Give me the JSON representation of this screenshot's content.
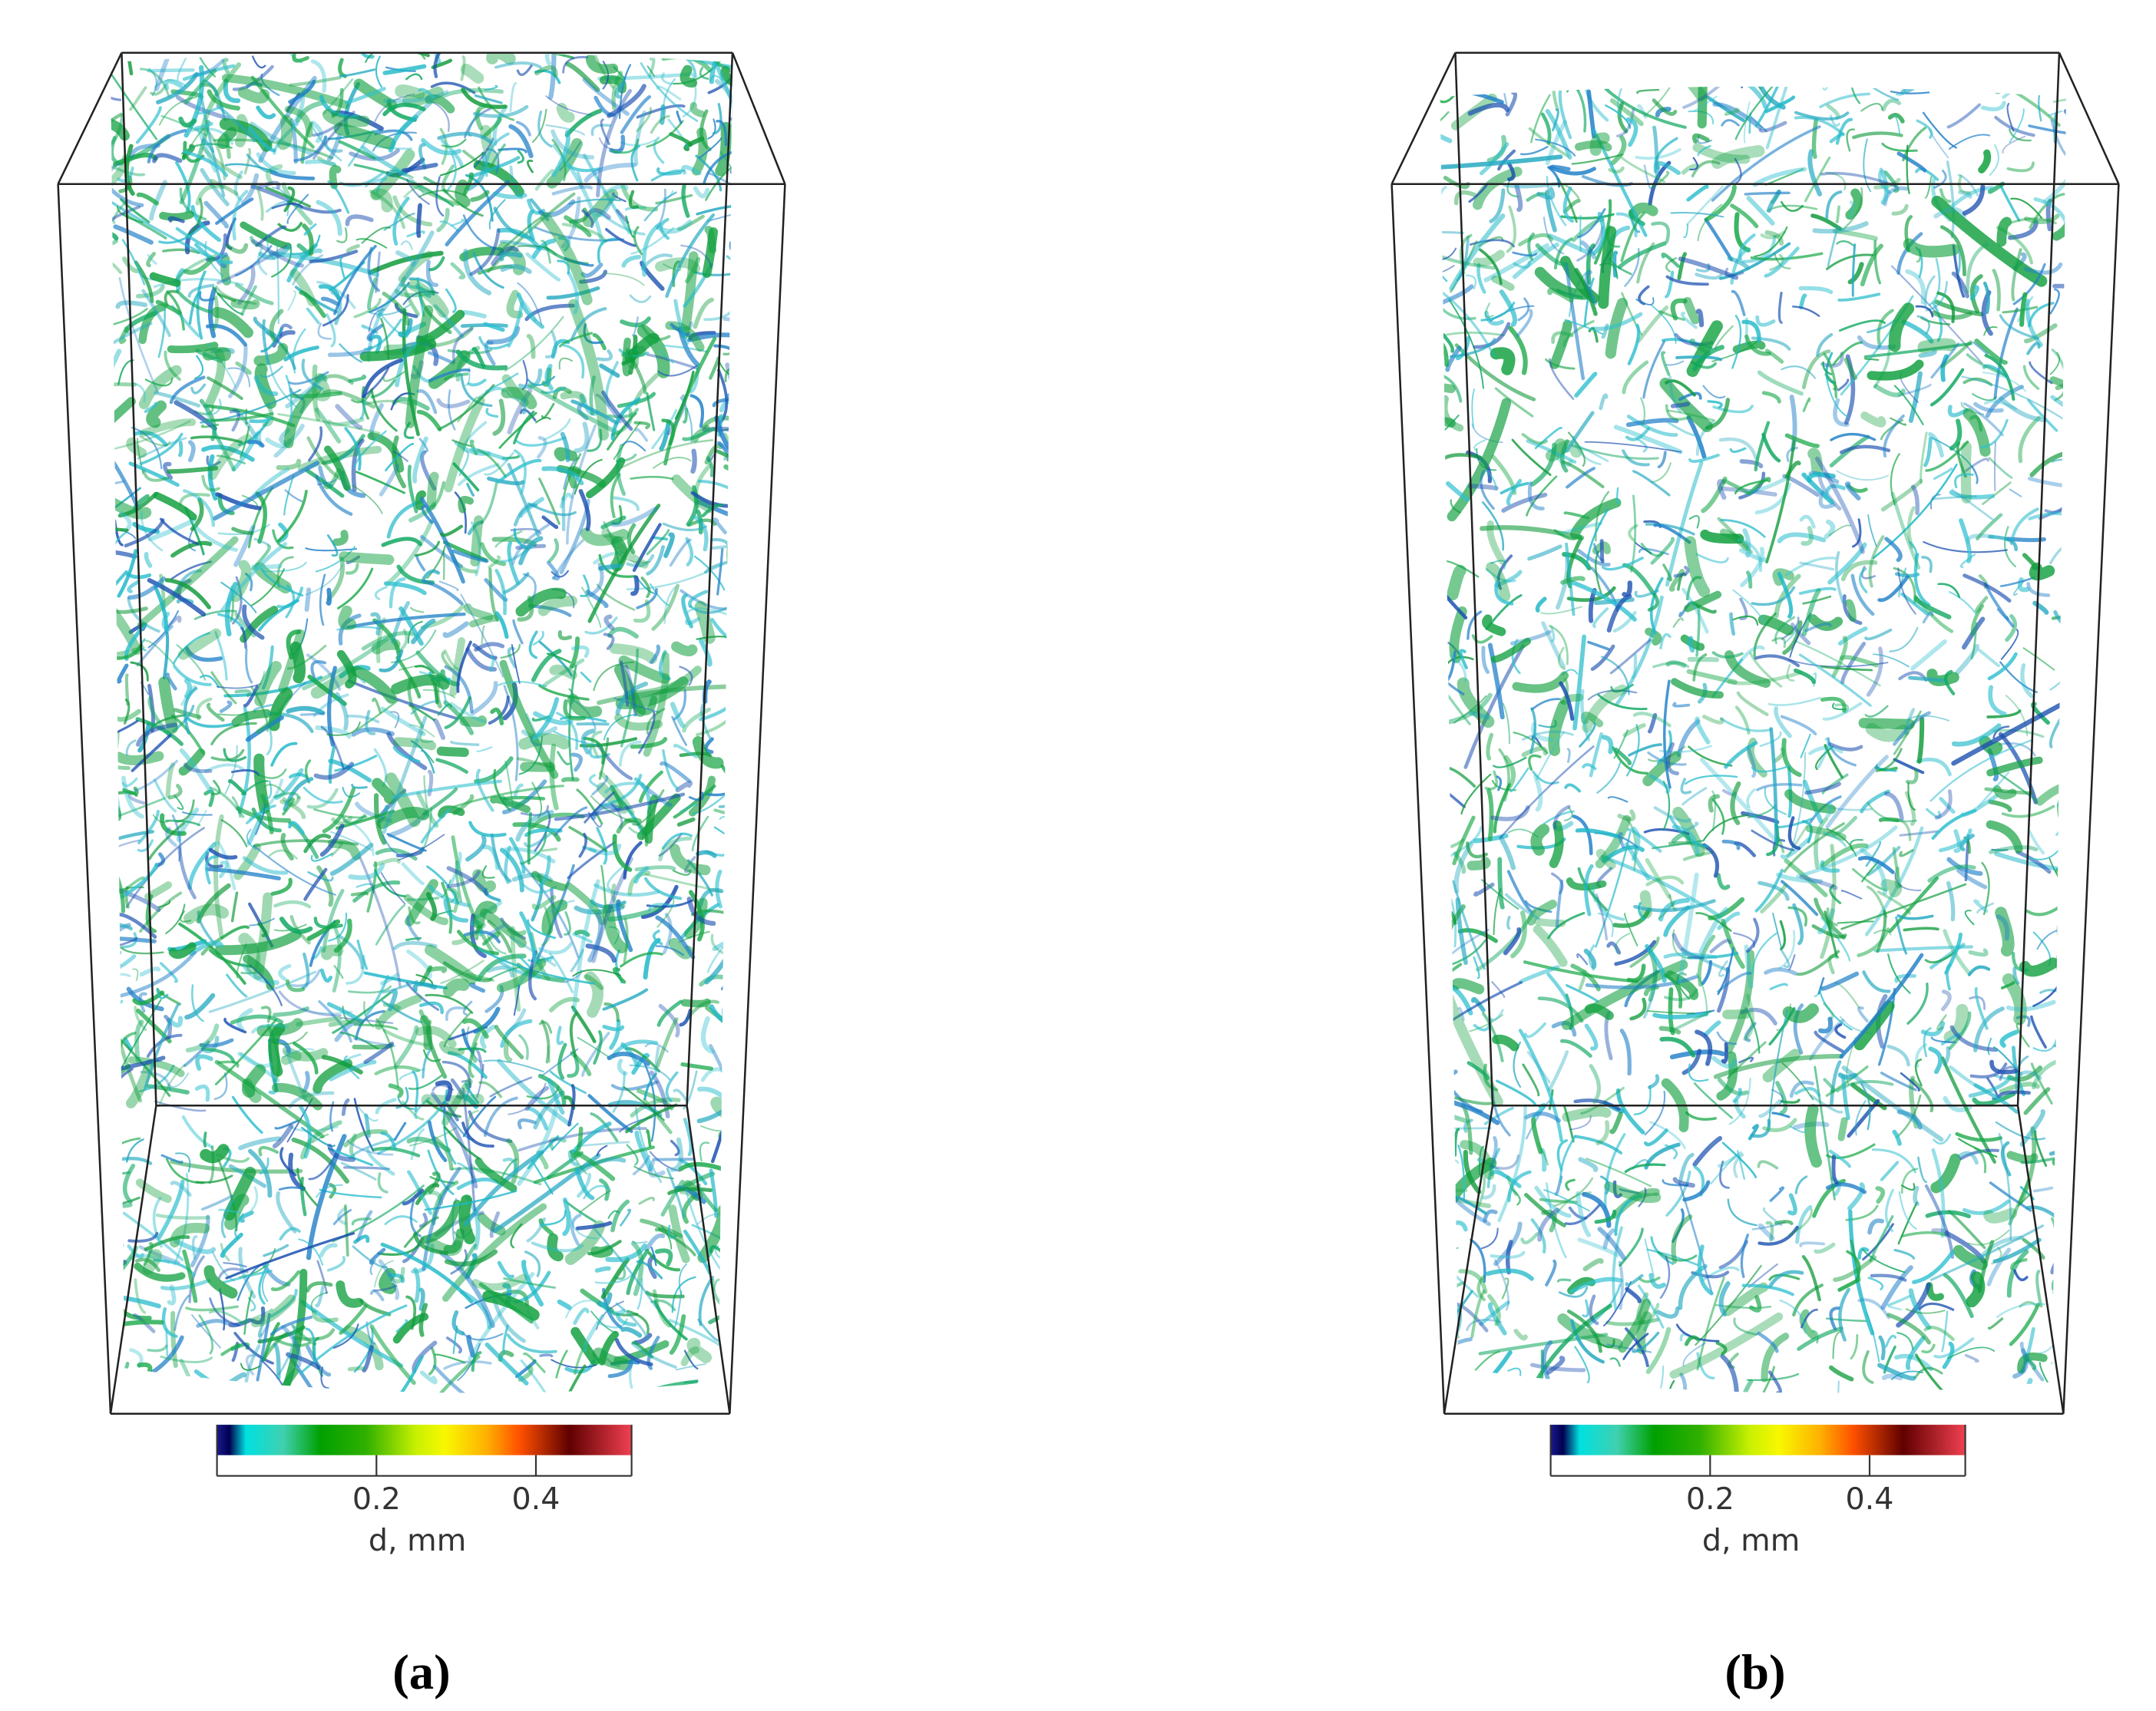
{
  "panels": [
    {
      "label": "(a)",
      "colorbar": {
        "title": "d, mm",
        "range": [
          0,
          0.52
        ],
        "ticks": [
          0.2,
          0.4
        ]
      }
    },
    {
      "label": "(b)",
      "colorbar": {
        "title": "d, mm",
        "range": [
          0,
          0.52
        ],
        "ticks": [
          0.2,
          0.4
        ]
      }
    }
  ]
}
